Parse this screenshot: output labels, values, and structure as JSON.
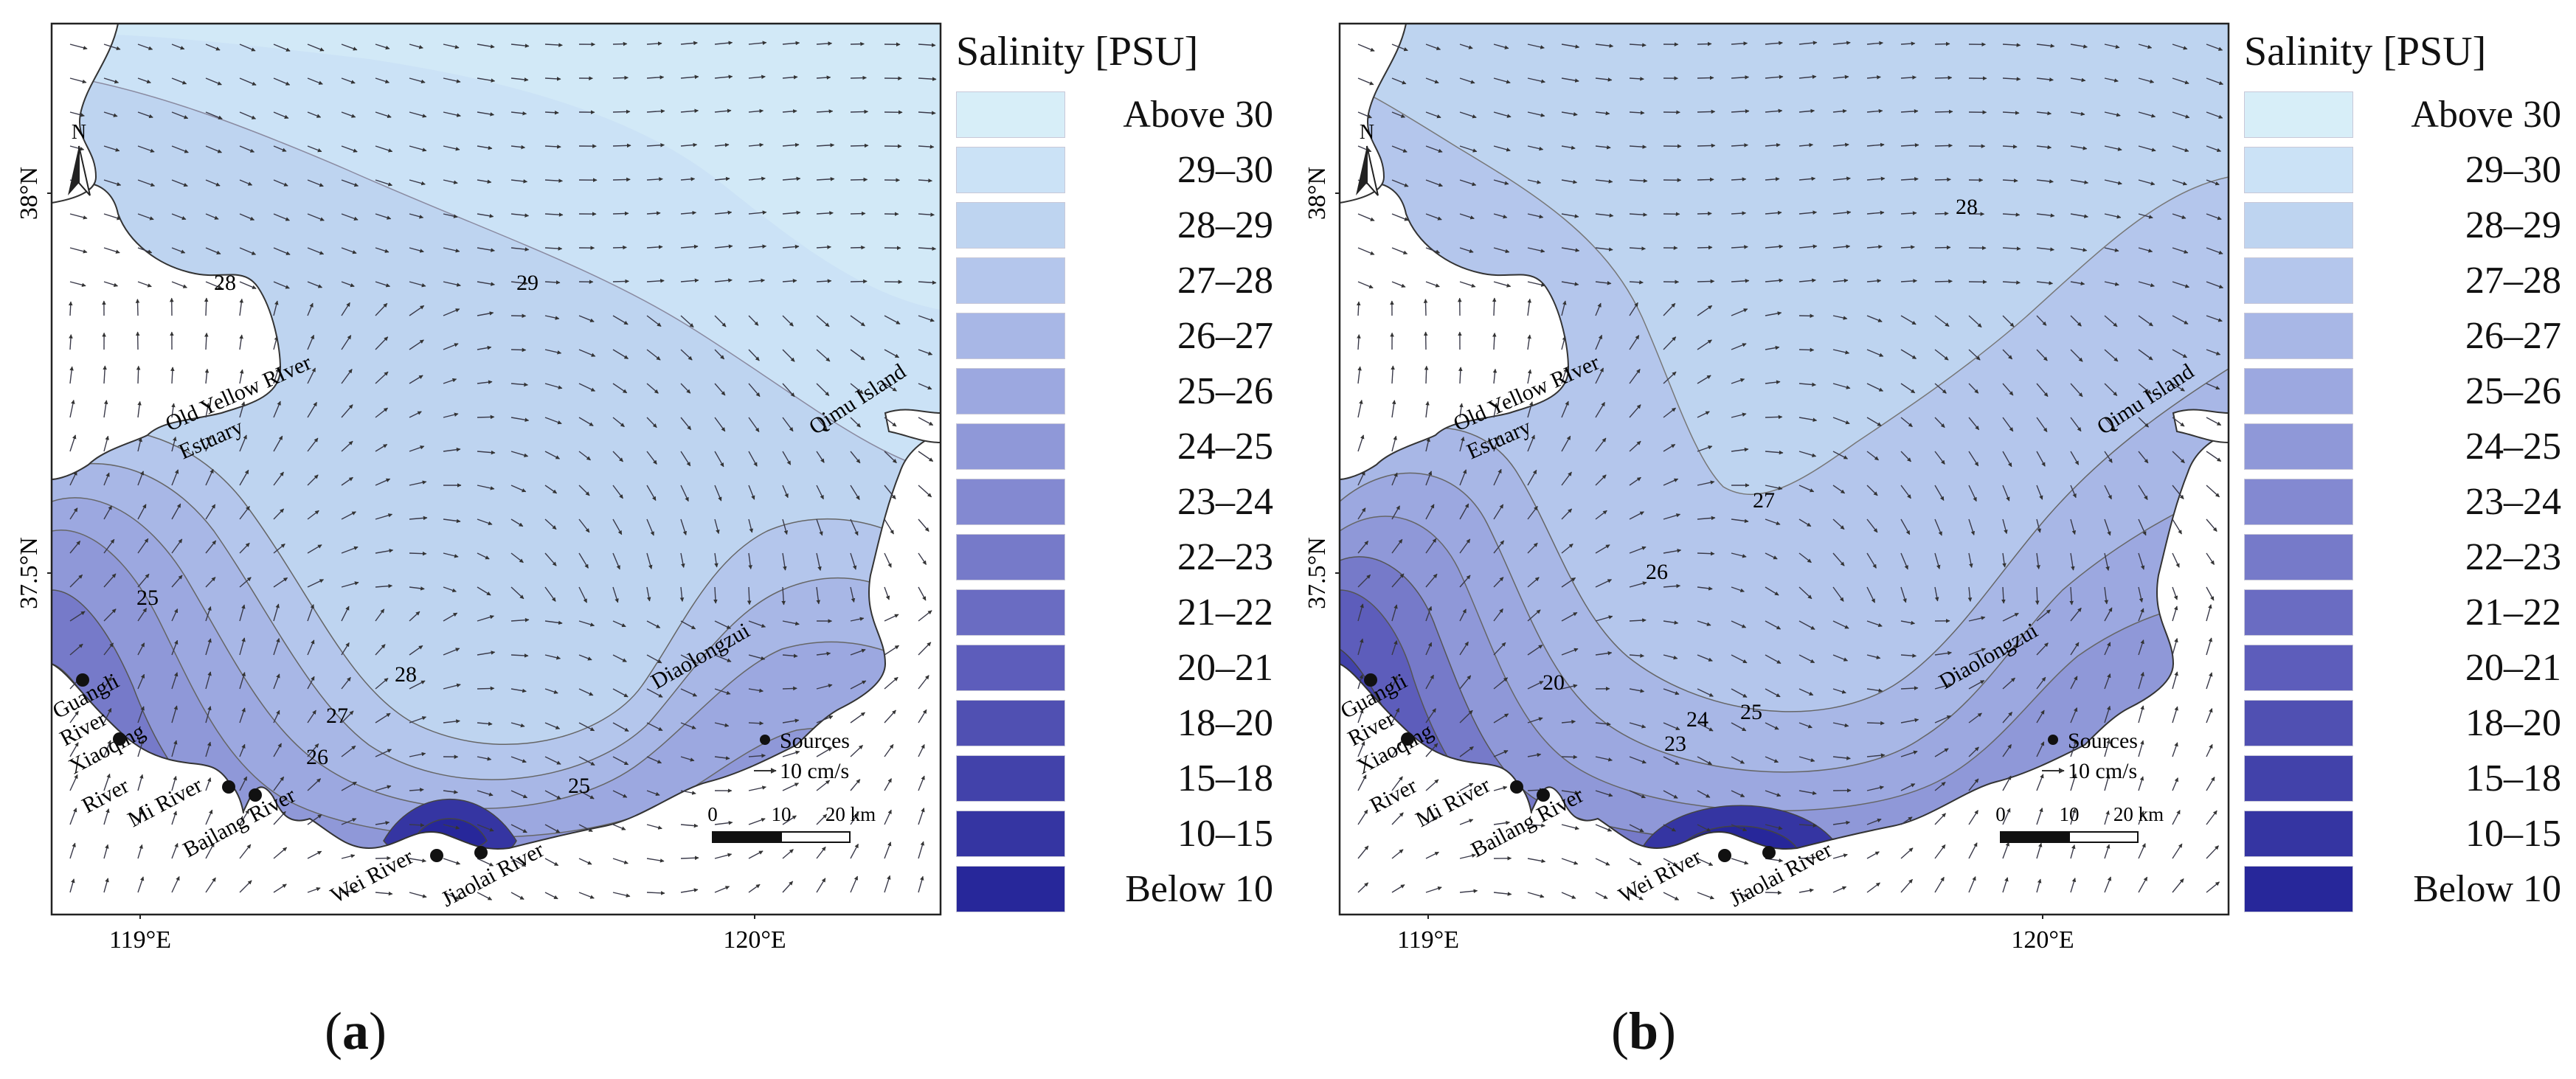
{
  "panels": [
    {
      "label": "a",
      "axis": {
        "lat_ticks": [
          "38°N",
          "37.5°N"
        ],
        "lon_ticks": [
          "119°E",
          "120°E"
        ]
      },
      "north_label": "N",
      "contour_labels": [
        "28",
        "29",
        "25",
        "28",
        "27",
        "26",
        "25"
      ],
      "place_labels": {
        "old_yellow_river": "Old Yellow RIver",
        "estuary": "Estuary",
        "qimu_island": "Qimu Island",
        "diaolongzui": "Diaolongzui",
        "guangli": "Guangli",
        "guangli_river": "River",
        "xiaoqing": "Xiaoqing",
        "xiaoqing_river": "River",
        "mi_river": "Mi River",
        "bailang_river": "Bailang River",
        "wei_river": "Wei River",
        "jiaolai_river": "Jiaolai River"
      },
      "key": {
        "sources": "Sources",
        "vector": "10 cm/s",
        "scale_ticks": [
          "0",
          "10",
          "20 km"
        ]
      }
    },
    {
      "label": "b",
      "axis": {
        "lat_ticks": [
          "38°N",
          "37.5°N"
        ],
        "lon_ticks": [
          "119°E",
          "120°E"
        ]
      },
      "north_label": "N",
      "contour_labels": [
        "28",
        "27",
        "26",
        "20",
        "24",
        "25",
        "23"
      ],
      "place_labels": {
        "old_yellow_river": "Old Yellow RIver",
        "estuary": "Estuary",
        "qimu_island": "Qimu Island",
        "diaolongzui": "Diaolongzui",
        "guangli": "Guangli",
        "guangli_river": "River",
        "xiaoqing": "Xiaoqing",
        "xiaoqing_river": "River",
        "mi_river": "Mi River",
        "bailang_river": "Bailang River",
        "wei_river": "Wei River",
        "jiaolai_river": "Jiaolai River"
      },
      "key": {
        "sources": "Sources",
        "vector": "10 cm/s",
        "scale_ticks": [
          "0",
          "10",
          "20 km"
        ]
      }
    }
  ],
  "legend": {
    "title": "Salinity [PSU]",
    "classes": [
      {
        "label": "Above 30",
        "color": "#d7eef8"
      },
      {
        "label": "29–30",
        "color": "#cbe2f6"
      },
      {
        "label": "28–29",
        "color": "#bed4f0"
      },
      {
        "label": "27–28",
        "color": "#b4c6ec"
      },
      {
        "label": "26–27",
        "color": "#a8b7e6"
      },
      {
        "label": "25–26",
        "color": "#9ca8e0"
      },
      {
        "label": "24–25",
        "color": "#8f98d8"
      },
      {
        "label": "23–24",
        "color": "#8389d1"
      },
      {
        "label": "22–23",
        "color": "#767ac9"
      },
      {
        "label": "21–22",
        "color": "#6a6cc2"
      },
      {
        "label": "20–21",
        "color": "#5d5dbb"
      },
      {
        "label": "18–20",
        "color": "#5050b2"
      },
      {
        "label": "15–18",
        "color": "#4242aa"
      },
      {
        "label": "10–15",
        "color": "#3535a2"
      },
      {
        "label": "Below 10",
        "color": "#27279a"
      }
    ]
  }
}
